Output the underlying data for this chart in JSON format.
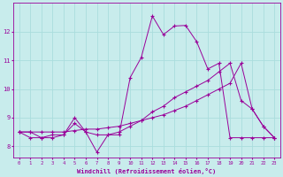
{
  "xlabel": "Windchill (Refroidissement éolien,°C)",
  "bg_color": "#c8ecec",
  "line_color": "#990099",
  "grid_color": "#aadddd",
  "xlim": [
    -0.5,
    23.5
  ],
  "ylim": [
    7.6,
    13.0
  ],
  "xticks": [
    0,
    1,
    2,
    3,
    4,
    5,
    6,
    7,
    8,
    9,
    10,
    11,
    12,
    13,
    14,
    15,
    16,
    17,
    18,
    19,
    20,
    21,
    22,
    23
  ],
  "yticks": [
    8,
    9,
    10,
    11,
    12
  ],
  "line1_x": [
    0,
    1,
    2,
    3,
    4,
    5,
    6,
    7,
    8,
    9,
    10,
    11,
    12,
    13,
    14,
    15,
    16,
    17,
    18,
    19,
    20,
    21,
    22,
    23
  ],
  "line1_y": [
    8.5,
    8.5,
    8.3,
    8.3,
    8.4,
    9.0,
    8.5,
    7.8,
    8.4,
    8.4,
    10.4,
    11.1,
    12.55,
    11.9,
    12.2,
    12.22,
    11.65,
    10.7,
    10.9,
    8.3,
    8.3,
    8.3,
    8.3,
    8.3
  ],
  "line2_x": [
    0,
    1,
    2,
    3,
    4,
    5,
    6,
    7,
    8,
    9,
    10,
    11,
    12,
    13,
    14,
    15,
    16,
    17,
    18,
    19,
    20,
    21,
    22,
    23
  ],
  "line2_y": [
    8.5,
    8.3,
    8.3,
    8.4,
    8.4,
    8.8,
    8.5,
    8.4,
    8.4,
    8.5,
    8.7,
    8.9,
    9.2,
    9.4,
    9.7,
    9.9,
    10.1,
    10.3,
    10.6,
    10.9,
    9.6,
    9.3,
    8.7,
    8.3
  ],
  "line3_x": [
    0,
    1,
    2,
    3,
    4,
    5,
    6,
    7,
    8,
    9,
    10,
    11,
    12,
    13,
    14,
    15,
    16,
    17,
    18,
    19,
    20,
    21,
    22,
    23
  ],
  "line3_y": [
    8.5,
    8.5,
    8.5,
    8.5,
    8.5,
    8.55,
    8.6,
    8.6,
    8.65,
    8.7,
    8.8,
    8.9,
    9.0,
    9.1,
    9.25,
    9.4,
    9.6,
    9.8,
    10.0,
    10.2,
    10.9,
    9.3,
    8.7,
    8.3
  ]
}
